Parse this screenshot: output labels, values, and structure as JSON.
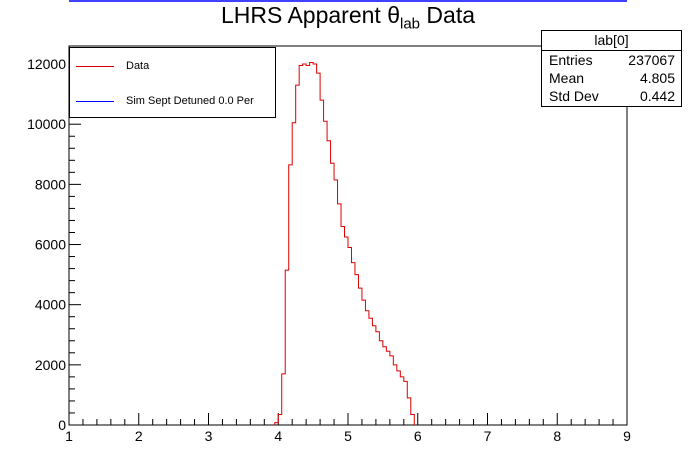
{
  "chart_data": {
    "type": "histogram",
    "title_main": "LHRS Apparent θ",
    "title_sub": "lab",
    "title_tail": " Data",
    "xlim": [
      1,
      9
    ],
    "ylim": [
      0,
      12600
    ],
    "x_ticks": [
      1,
      2,
      3,
      4,
      5,
      6,
      7,
      8,
      9
    ],
    "y_ticks": [
      0,
      2000,
      4000,
      6000,
      8000,
      10000,
      12000
    ],
    "bin_width": 0.05,
    "series": [
      {
        "name": "Data",
        "color": "#e00000",
        "bin_start": 3.95,
        "values": [
          80,
          350,
          1700,
          5150,
          8650,
          10050,
          11300,
          11950,
          12000,
          11950,
          12050,
          12000,
          11700,
          10800,
          10100,
          9450,
          8700,
          8150,
          7350,
          6600,
          6250,
          5900,
          5400,
          5000,
          4550,
          4150,
          3800,
          3550,
          3300,
          3100,
          2800,
          2600,
          2450,
          2300,
          2000,
          1800,
          1600,
          1450,
          900,
          350
        ]
      },
      {
        "name": "Sim Sept Detuned 0.0 Per",
        "color": "#0000ff",
        "values": []
      }
    ],
    "legend": [
      "Data",
      "Sim Sept Detuned 0.0 Per"
    ],
    "legend_position": "top-left",
    "stats": {
      "name": "lab[0]",
      "rows": [
        {
          "label": "Entries",
          "value": "237067"
        },
        {
          "label": "Mean",
          "value": "4.805"
        },
        {
          "label": "Std Dev",
          "value": "0.442"
        }
      ]
    }
  }
}
